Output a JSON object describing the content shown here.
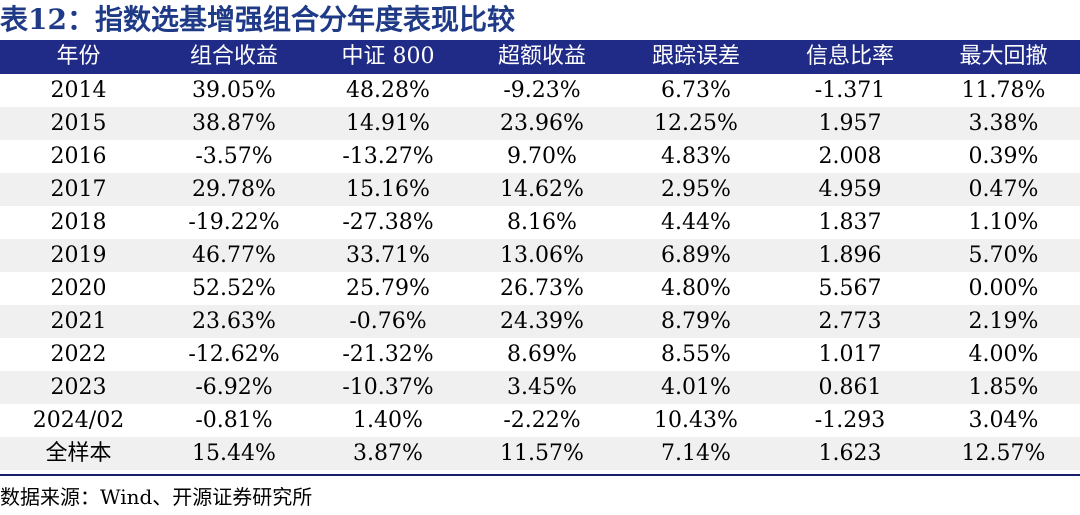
{
  "title": "表12：指数选基增强组合分年度表现比较",
  "table": {
    "headers": [
      "年份",
      "组合收益",
      "中证 800",
      "超额收益",
      "跟踪误差",
      "信息比率",
      "最大回撤"
    ],
    "rows": [
      [
        "2014",
        "39.05%",
        "48.28%",
        "-9.23%",
        "6.73%",
        "-1.371",
        "11.78%"
      ],
      [
        "2015",
        "38.87%",
        "14.91%",
        "23.96%",
        "12.25%",
        "1.957",
        "3.38%"
      ],
      [
        "2016",
        "-3.57%",
        "-13.27%",
        "9.70%",
        "4.83%",
        "2.008",
        "0.39%"
      ],
      [
        "2017",
        "29.78%",
        "15.16%",
        "14.62%",
        "2.95%",
        "4.959",
        "0.47%"
      ],
      [
        "2018",
        "-19.22%",
        "-27.38%",
        "8.16%",
        "4.44%",
        "1.837",
        "1.10%"
      ],
      [
        "2019",
        "46.77%",
        "33.71%",
        "13.06%",
        "6.89%",
        "1.896",
        "5.70%"
      ],
      [
        "2020",
        "52.52%",
        "25.79%",
        "26.73%",
        "4.80%",
        "5.567",
        "0.00%"
      ],
      [
        "2021",
        "23.63%",
        "-0.76%",
        "24.39%",
        "8.79%",
        "2.773",
        "2.19%"
      ],
      [
        "2022",
        "-12.62%",
        "-21.32%",
        "8.69%",
        "8.55%",
        "1.017",
        "4.00%"
      ],
      [
        "2023",
        "-6.92%",
        "-10.37%",
        "3.45%",
        "4.01%",
        "0.861",
        "1.85%"
      ],
      [
        "2024/02",
        "-0.81%",
        "1.40%",
        "-2.22%",
        "10.43%",
        "-1.293",
        "3.04%"
      ],
      [
        "全样本",
        "15.44%",
        "3.87%",
        "11.57%",
        "7.14%",
        "1.623",
        "12.57%"
      ]
    ]
  },
  "source": "数据来源：Wind、开源证券研究所",
  "colors": {
    "title": "#1f3a87",
    "header_background": "#1f2b87",
    "header_text": "#ffffff",
    "alternate_row": "#f0f0f0",
    "bottom_rule": "#1a1f6a"
  }
}
